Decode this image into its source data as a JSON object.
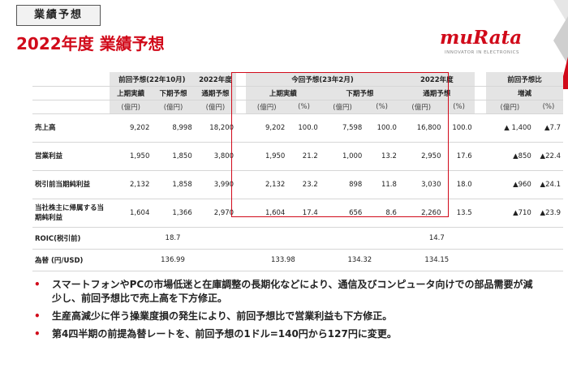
{
  "header": {
    "tag": "業績予想",
    "title": "2022年度 業績予想",
    "logo_text": "muRata",
    "logo_tagline": "INNOVATOR IN ELECTRONICS",
    "brand_color": "#d10a1a"
  },
  "table": {
    "groups": {
      "prev": "前回予想(22年10月)",
      "fy2022_prev": "2022年度",
      "current": "今回予想(23年2月)",
      "fy2022_cur": "2022年度",
      "diff": "前回予想比"
    },
    "subheaders": {
      "h1": "上期実績",
      "h2": "下期予想",
      "fy_prev": "通期予想",
      "c_h1": "上期実績",
      "c_h2": "下期予想",
      "c_fy": "通期予想",
      "diff": "増減"
    },
    "units": {
      "oku": "(億円)",
      "pct": "(%)"
    },
    "rows": [
      {
        "label": "売上高",
        "p1": "9,202",
        "p2": "8,998",
        "pfy": "18,200",
        "c1": "9,202",
        "c1p": "100.0",
        "c2": "7,598",
        "c2p": "100.0",
        "cfy": "16,800",
        "cfyp": "100.0",
        "d": "▲ 1,400",
        "dp": "▲7.7"
      },
      {
        "label": "営業利益",
        "p1": "1,950",
        "p2": "1,850",
        "pfy": "3,800",
        "c1": "1,950",
        "c1p": "21.2",
        "c2": "1,000",
        "c2p": "13.2",
        "cfy": "2,950",
        "cfyp": "17.6",
        "d": "▲850",
        "dp": "▲22.4"
      },
      {
        "label": "税引前当期純利益",
        "p1": "2,132",
        "p2": "1,858",
        "pfy": "3,990",
        "c1": "2,132",
        "c1p": "23.2",
        "c2": "898",
        "c2p": "11.8",
        "cfy": "3,030",
        "cfyp": "18.0",
        "d": "▲960",
        "dp": "▲24.1"
      },
      {
        "label": "当社株主に帰属する当期純利益",
        "p1": "1,604",
        "p2": "1,366",
        "pfy": "2,970",
        "c1": "1,604",
        "c1p": "17.4",
        "c2": "656",
        "c2p": "8.6",
        "cfy": "2,260",
        "cfyp": "13.5",
        "d": "▲710",
        "dp": "▲23.9"
      }
    ],
    "roic": {
      "label": "ROIC(税引前)",
      "prev": "18.7",
      "cur": "14.7"
    },
    "fx": {
      "label": "為替 (円/USD)",
      "prev": "136.99",
      "c1": "133.98",
      "c2": "134.32",
      "cfy": "134.15"
    }
  },
  "bullets": [
    "スマートフォンやPCの市場低迷と在庫調整の長期化などにより、通信及びコンピュータ向けでの部品需要が減少し、前回予想比で売上高を下方修正。",
    "生産高減少に伴う操業度損の発生により、前回予想比で営業利益も下方修正。",
    "第4四半期の前提為替レートを、前回予想の1ドル=140円から127円に変更。"
  ]
}
